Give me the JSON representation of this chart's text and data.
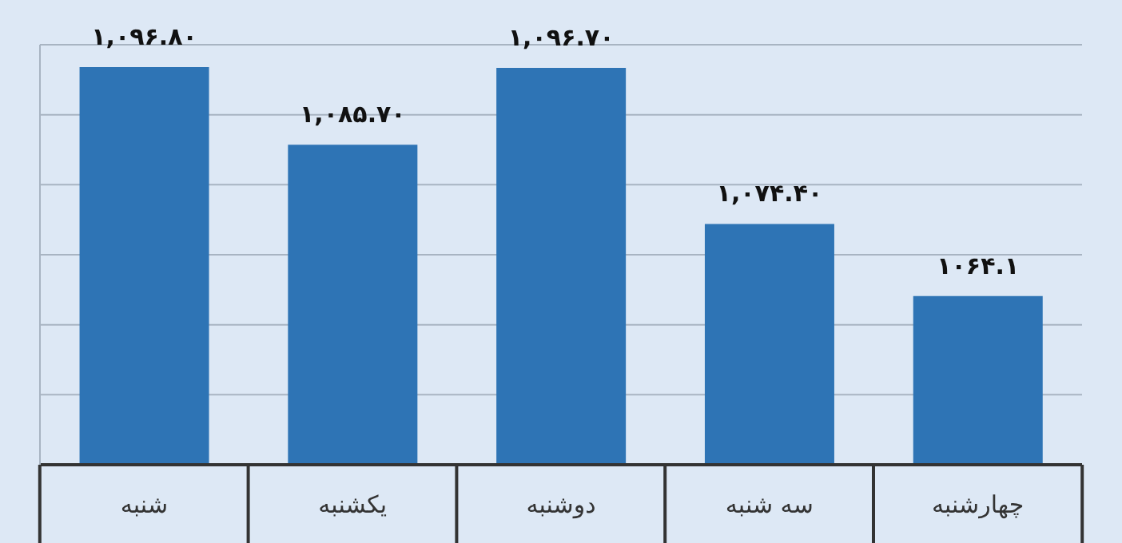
{
  "chart_data": {
    "type": "bar",
    "categories": [
      "شنبه",
      "یکشنبه",
      "دوشنبه",
      "سه شنبه",
      "چهارشنبه"
    ],
    "values": [
      1096.8,
      1085.7,
      1096.7,
      1074.4,
      1064.1
    ],
    "value_labels": [
      "۱,۰۹۶.۸۰",
      "۱,۰۸۵.۷۰",
      "۱,۰۹۶.۷۰",
      "۱,۰۷۴.۴۰",
      "۱۰۶۴.۱"
    ],
    "color": "#2e74b5",
    "ylim": [
      1040,
      1100
    ],
    "yticks": [
      {
        "value": 1040,
        "label": null
      },
      {
        "value": 1050,
        "label": null
      },
      {
        "value": 1060,
        "label": null
      },
      {
        "value": 1070,
        "label": null
      },
      {
        "value": 1080,
        "label": null
      },
      {
        "value": 1090,
        "label": null
      },
      {
        "value": 1100,
        "label": null
      }
    ],
    "grid": "y",
    "tick_labels": "x"
  }
}
